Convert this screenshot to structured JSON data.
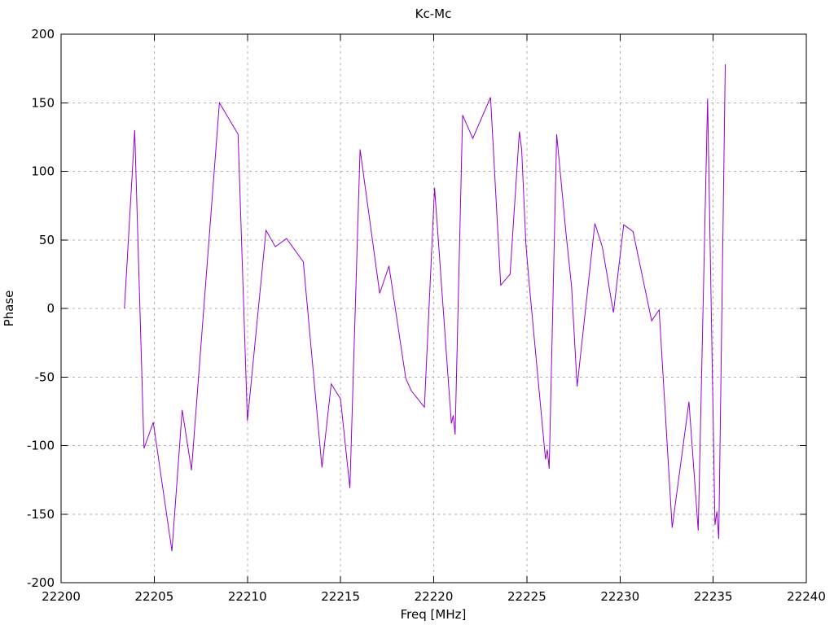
{
  "chart_data": {
    "type": "line",
    "title": "Kc-Mc",
    "xlabel": "Freq [MHz]",
    "ylabel": "Phase",
    "xlim": [
      22200,
      22240
    ],
    "ylim": [
      -200,
      200
    ],
    "xticks": [
      22200,
      22205,
      22210,
      22215,
      22220,
      22225,
      22230,
      22235,
      22240
    ],
    "yticks": [
      -200,
      -150,
      -100,
      -50,
      0,
      50,
      100,
      150,
      200
    ],
    "grid": true,
    "legend": "none",
    "colors": {
      "trace": "#9400d3",
      "grid": "#b0b0b0",
      "border": "#000000",
      "background": "#ffffff"
    },
    "series": [
      {
        "name": "Kc-Mc",
        "color": "#9400d3",
        "points": [
          [
            22203.4,
            0
          ],
          [
            22203.95,
            130
          ],
          [
            22204.45,
            -102
          ],
          [
            22204.95,
            -83
          ],
          [
            22205.95,
            -177
          ],
          [
            22206.5,
            -74
          ],
          [
            22207.0,
            -118
          ],
          [
            22208.5,
            150
          ],
          [
            22209.5,
            127
          ],
          [
            22210.0,
            -82
          ],
          [
            22211.0,
            57
          ],
          [
            22211.5,
            45
          ],
          [
            22212.1,
            51
          ],
          [
            22213.0,
            34
          ],
          [
            22214.0,
            -116
          ],
          [
            22214.5,
            -55
          ],
          [
            22215.0,
            -66
          ],
          [
            22215.5,
            -131
          ],
          [
            22216.05,
            116
          ],
          [
            22217.1,
            11
          ],
          [
            22217.6,
            31
          ],
          [
            22218.5,
            -51
          ],
          [
            22218.8,
            -60
          ],
          [
            22219.5,
            -72
          ],
          [
            22220.05,
            88
          ],
          [
            22220.95,
            -84
          ],
          [
            22221.05,
            -78
          ],
          [
            22221.15,
            -92
          ],
          [
            22221.55,
            141
          ],
          [
            22222.1,
            124
          ],
          [
            22223.05,
            154
          ],
          [
            22223.6,
            17
          ],
          [
            22224.1,
            25
          ],
          [
            22224.6,
            129
          ],
          [
            22224.72,
            116
          ],
          [
            22224.95,
            47
          ],
          [
            22225.12,
            19
          ],
          [
            22226.0,
            -110
          ],
          [
            22226.1,
            -103
          ],
          [
            22226.2,
            -117
          ],
          [
            22226.6,
            127
          ],
          [
            22227.1,
            55
          ],
          [
            22227.4,
            16
          ],
          [
            22227.7,
            -57
          ],
          [
            22228.65,
            62
          ],
          [
            22229.05,
            45
          ],
          [
            22229.65,
            -3
          ],
          [
            22230.2,
            61
          ],
          [
            22230.7,
            56
          ],
          [
            22231.7,
            -9
          ],
          [
            22232.1,
            -1
          ],
          [
            22232.8,
            -160
          ],
          [
            22233.7,
            -68
          ],
          [
            22234.2,
            -162
          ],
          [
            22234.7,
            153
          ],
          [
            22235.1,
            -158
          ],
          [
            22235.2,
            -148
          ],
          [
            22235.3,
            -168
          ],
          [
            22235.65,
            178
          ]
        ]
      }
    ]
  }
}
